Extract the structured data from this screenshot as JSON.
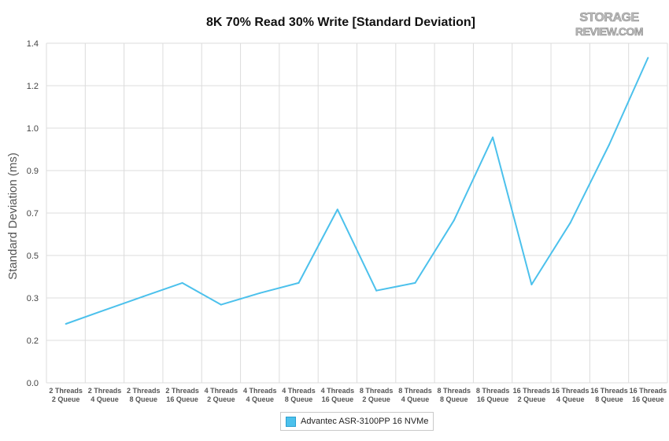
{
  "chart_data": {
    "type": "line",
    "title": "8K 70% Read 30% Write [Standard Deviation]",
    "ylabel": "Standard Deviation (ms)",
    "xlabel": "",
    "ylim": [
      0,
      1.4
    ],
    "yticks": [
      "0.0",
      "0.2",
      "0.3",
      "0.5",
      "0.7",
      "0.9",
      "1.0",
      "1.2",
      "1.4"
    ],
    "ytick_values": [
      0,
      0.175,
      0.35,
      0.525,
      0.7,
      0.875,
      1.05,
      1.225,
      1.4
    ],
    "categories": [
      [
        "2 Threads",
        "2 Queue"
      ],
      [
        "2 Threads",
        "4 Queue"
      ],
      [
        "2 Threads",
        "8 Queue"
      ],
      [
        "2 Threads",
        "16 Queue"
      ],
      [
        "4 Threads",
        "2 Queue"
      ],
      [
        "4 Threads",
        "4 Queue"
      ],
      [
        "4 Threads",
        "8 Queue"
      ],
      [
        "4 Threads",
        "16 Queue"
      ],
      [
        "8 Threads",
        "2 Queue"
      ],
      [
        "8 Threads",
        "4 Queue"
      ],
      [
        "8 Threads",
        "8 Queue"
      ],
      [
        "8 Threads",
        "16 Queue"
      ],
      [
        "16 Threads",
        "2 Queue"
      ],
      [
        "16 Threads",
        "4 Queue"
      ],
      [
        "16 Threads",
        "8 Queue"
      ],
      [
        "16 Threads",
        "16 Queue"
      ]
    ],
    "series": [
      {
        "name": "Advantec ASR-3100PP 16 NVMe",
        "color": "#4cc1ec",
        "values": [
          0.243,
          0.3,
          0.356,
          0.412,
          0.322,
          0.37,
          0.412,
          0.715,
          0.38,
          0.412,
          0.67,
          1.012,
          0.405,
          0.66,
          0.982,
          1.34
        ]
      }
    ],
    "grid": true,
    "legend_position": "bottom-center"
  },
  "logo_text": [
    "STORAGE",
    "REVIEW.COM"
  ]
}
